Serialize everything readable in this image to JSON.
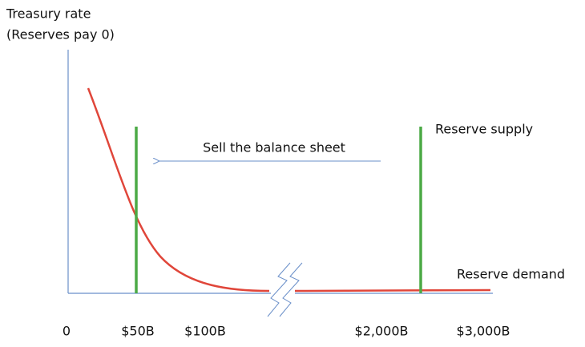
{
  "y_axis_label": [
    "Treasury rate",
    "(Reserves pay 0)"
  ],
  "x_labels": [
    "0",
    "$50B",
    "$100B",
    "$2,000B",
    "$3,000B"
  ],
  "annotations": {
    "arrow": "Sell the balance sheet",
    "supply": "Reserve supply",
    "demand": "Reserve demand"
  }
}
